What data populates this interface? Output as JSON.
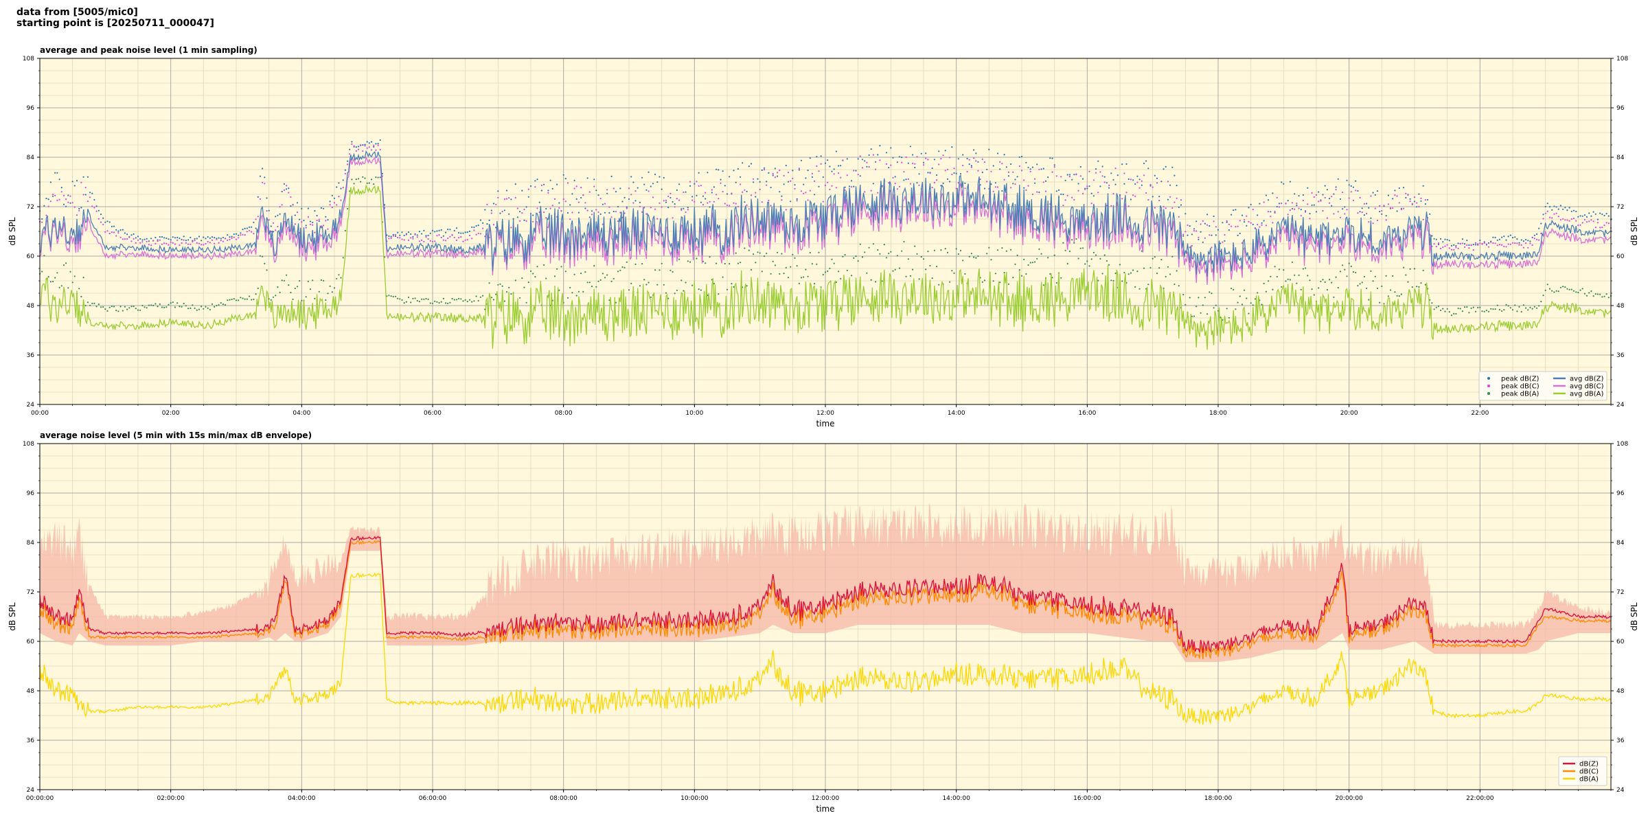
{
  "header": {
    "line1": "data from [5005/mic0]",
    "line2": "starting point is [20250711_000047]"
  },
  "colors": {
    "background": "#fff8dc",
    "grid_major": "#a9a9a9",
    "grid_minor": "#e0d8b8",
    "peak_z": "#1f77b4",
    "peak_c": "#e040e0",
    "peak_a": "#2e8b57",
    "avg_z": "#4a7fb5",
    "avg_c": "#da6fd6",
    "avg_a": "#9acd32",
    "dbz": "#dc143c",
    "dbc": "#ff8c00",
    "dba": "#ffd700",
    "envelope": "#f5b8a8"
  },
  "chart_data": [
    {
      "type": "line",
      "title": "average and peak noise level (1 min sampling)",
      "xlabel": "time",
      "ylabel": "dB SPL",
      "xlim": [
        0,
        24
      ],
      "ylim": [
        24,
        108
      ],
      "yticks": [
        24,
        36,
        48,
        60,
        72,
        84,
        96,
        108
      ],
      "xtick_labels": [
        "00:00",
        "02:00",
        "04:00",
        "06:00",
        "08:00",
        "10:00",
        "12:00",
        "14:00",
        "16:00",
        "18:00",
        "20:00",
        "22:00"
      ],
      "grid": true,
      "legend_position": "lower-right",
      "legend": [
        {
          "label": "peak dB(Z)",
          "kind": "dot",
          "color_key": "peak_z"
        },
        {
          "label": "peak dB(C)",
          "kind": "dot",
          "color_key": "peak_c"
        },
        {
          "label": "peak dB(A)",
          "kind": "dot",
          "color_key": "peak_a"
        },
        {
          "label": "avg dB(Z)",
          "kind": "line",
          "color_key": "avg_z"
        },
        {
          "label": "avg dB(C)",
          "kind": "line",
          "color_key": "avg_c"
        },
        {
          "label": "avg dB(A)",
          "kind": "line",
          "color_key": "avg_a"
        }
      ],
      "series_x_hours": [
        0,
        0.25,
        0.5,
        0.75,
        1,
        1.5,
        2,
        2.5,
        3,
        3.3,
        3.4,
        3.5,
        3.6,
        3.75,
        4,
        4.4,
        4.6,
        4.75,
        5,
        5.2,
        5.3,
        5.5,
        6,
        6.5,
        7,
        7.5,
        8,
        8.5,
        9,
        9.5,
        10,
        10.5,
        11,
        11.5,
        12,
        12.5,
        13,
        13.5,
        14,
        14.5,
        15,
        15.5,
        16,
        16.5,
        17,
        17.3,
        17.5,
        18,
        18.5,
        19,
        19.5,
        20,
        20.5,
        21,
        21.2,
        21.3,
        21.5,
        22,
        22.5,
        22.7,
        22.9,
        23,
        23.5,
        24
      ],
      "series": [
        {
          "name": "avg dB(Z)",
          "values": [
            64,
            68,
            65,
            70,
            62,
            62,
            61.5,
            61.5,
            62,
            63,
            74,
            64,
            62,
            70,
            64,
            65,
            70,
            84,
            84.5,
            84.5,
            62,
            62,
            62,
            61.5,
            63,
            65,
            66,
            65.5,
            66,
            66,
            66,
            67,
            70,
            68,
            70,
            73,
            74,
            74,
            74,
            73,
            71,
            70,
            68,
            69,
            68,
            68,
            60,
            59,
            61,
            66,
            64,
            66,
            63,
            67,
            66,
            60,
            60,
            60,
            60,
            60,
            61,
            68,
            66,
            65.5
          ]
        },
        {
          "name": "avg dB(C)",
          "values": [
            63,
            67,
            63,
            68,
            60,
            60.5,
            60,
            60,
            60.5,
            61.5,
            72,
            62,
            60.5,
            68,
            62,
            63,
            68,
            83,
            83,
            83,
            60.5,
            60.5,
            60.5,
            60.5,
            62,
            63,
            64,
            63,
            64,
            64,
            64,
            65,
            68,
            66,
            68,
            71,
            72,
            72,
            72,
            71,
            69,
            68,
            66,
            67,
            66,
            66,
            58,
            57,
            59,
            64,
            62,
            64,
            61,
            65,
            64,
            58,
            58,
            58,
            58,
            58,
            59,
            66,
            64,
            64
          ]
        },
        {
          "name": "avg dB(A)",
          "values": [
            52,
            48,
            50,
            44,
            43,
            43,
            44,
            43,
            45,
            46,
            55,
            46,
            45,
            47,
            46,
            47,
            50,
            76,
            76,
            76,
            46,
            45,
            45,
            45,
            45,
            46,
            46,
            46,
            46,
            47,
            47,
            48,
            50,
            48,
            49,
            50,
            51,
            50,
            50,
            50,
            49,
            50,
            52,
            49,
            48,
            48,
            43,
            42,
            44,
            49,
            46,
            48,
            45,
            49,
            48,
            43,
            42,
            43,
            43,
            43,
            44,
            48,
            47,
            46
          ]
        },
        {
          "name": "peak dB(Z)",
          "values": [
            70,
            75,
            72,
            76,
            68,
            64,
            64,
            64,
            65,
            68,
            80,
            68,
            66,
            76,
            68,
            70,
            76,
            87,
            87,
            87,
            65,
            65,
            65,
            66,
            70,
            72,
            73,
            72,
            73,
            74,
            74,
            75,
            77,
            76,
            78,
            80,
            80,
            80,
            80,
            79,
            78,
            77,
            76,
            77,
            76,
            75,
            66,
            65,
            68,
            73,
            72,
            74,
            70,
            74,
            72,
            63,
            63,
            63,
            64,
            63,
            66,
            72,
            70,
            69
          ]
        },
        {
          "name": "peak dB(C)",
          "values": [
            68,
            73,
            70,
            74,
            66,
            63,
            63,
            63,
            64,
            66,
            78,
            66,
            64,
            74,
            66,
            68,
            74,
            86,
            86,
            86,
            64,
            64,
            64,
            64,
            68,
            70,
            71,
            70,
            71,
            72,
            72,
            73,
            75,
            74,
            76,
            78,
            78,
            78,
            78,
            77,
            76,
            75,
            74,
            75,
            74,
            73,
            64,
            63,
            66,
            71,
            70,
            72,
            68,
            72,
            70,
            62,
            62,
            62,
            63,
            62,
            64,
            70,
            68,
            67
          ]
        },
        {
          "name": "peak dB(A)",
          "values": [
            56,
            52,
            54,
            48,
            47,
            47,
            48,
            47,
            49,
            50,
            60,
            50,
            49,
            52,
            50,
            51,
            55,
            78,
            78,
            78,
            50,
            49,
            49,
            49,
            50,
            51,
            51,
            51,
            52,
            52,
            53,
            54,
            56,
            54,
            55,
            56,
            57,
            56,
            56,
            56,
            55,
            56,
            58,
            55,
            54,
            54,
            47,
            46,
            48,
            54,
            51,
            53,
            50,
            54,
            53,
            47,
            46,
            47,
            47,
            47,
            48,
            52,
            51,
            50
          ]
        }
      ]
    },
    {
      "type": "line",
      "title": "average noise level (5 min with 15s min/max dB envelope)",
      "xlabel": "time",
      "ylabel": "dB SPL",
      "xlim": [
        0,
        24
      ],
      "ylim": [
        24,
        108
      ],
      "yticks": [
        24,
        36,
        48,
        60,
        72,
        84,
        96,
        108
      ],
      "xtick_labels": [
        "00:00:00",
        "02:00:00",
        "04:00:00",
        "06:00:00",
        "08:00:00",
        "10:00:00",
        "12:00:00",
        "14:00:00",
        "16:00:00",
        "18:00:00",
        "20:00:00",
        "22:00:00"
      ],
      "grid": true,
      "legend_position": "lower-right",
      "legend": [
        {
          "label": "dB(Z)",
          "kind": "line",
          "color_key": "dbz"
        },
        {
          "label": "dB(C)",
          "kind": "line",
          "color_key": "dbc"
        },
        {
          "label": "dB(A)",
          "kind": "line",
          "color_key": "dba"
        }
      ],
      "series_x_hours": [
        0,
        0.25,
        0.5,
        0.6,
        0.75,
        1,
        1.5,
        2,
        2.5,
        3,
        3.3,
        3.5,
        3.6,
        3.75,
        3.9,
        4,
        4.4,
        4.6,
        4.75,
        5,
        5.2,
        5.3,
        5.5,
        6,
        6.5,
        7,
        7.5,
        8,
        8.5,
        9,
        9.5,
        10,
        10.5,
        11,
        11.2,
        11.5,
        12,
        12.5,
        13,
        13.5,
        14,
        14.5,
        15,
        15.5,
        16,
        16.5,
        17,
        17.3,
        17.5,
        18,
        18.5,
        19,
        19.5,
        19.9,
        20,
        20.5,
        21,
        21.2,
        21.3,
        21.5,
        22,
        22.5,
        22.7,
        22.9,
        23,
        23.5,
        24
      ],
      "series": [
        {
          "name": "dB(Z)",
          "values": [
            70,
            66,
            65,
            72,
            63,
            62,
            62,
            62,
            62,
            62.5,
            63,
            64,
            66,
            76,
            63,
            63,
            65,
            70,
            85,
            85,
            85,
            62,
            62,
            62,
            61.5,
            63,
            64,
            65,
            64,
            65,
            65,
            65,
            66,
            68,
            74,
            67,
            69,
            72,
            73,
            73,
            73,
            75,
            71,
            70,
            69,
            68,
            67,
            66,
            59,
            59,
            61,
            64,
            63,
            78,
            63,
            64,
            70,
            67,
            60,
            60,
            60,
            60,
            60,
            65,
            68,
            66,
            66
          ]
        },
        {
          "name": "dB(C)",
          "values": [
            68,
            64,
            63,
            70,
            61,
            61,
            61,
            61,
            61,
            61.5,
            62,
            63,
            64,
            75,
            62,
            62,
            64,
            69,
            84,
            84,
            84,
            61,
            61,
            61,
            60.5,
            61.5,
            62.5,
            63,
            62.5,
            63,
            63,
            63,
            64,
            66,
            72,
            65,
            67,
            70,
            71,
            71,
            71,
            73,
            69,
            68,
            67,
            66,
            65,
            64,
            57.5,
            57.5,
            59.5,
            62,
            61.5,
            76,
            61.5,
            62.5,
            68,
            65,
            59,
            59,
            59,
            59,
            59,
            64,
            66,
            65,
            65
          ]
        },
        {
          "name": "dB(A)",
          "values": [
            53,
            48,
            47,
            44,
            43,
            43,
            44,
            44,
            44,
            45,
            46,
            47,
            50,
            53,
            46,
            46,
            47,
            50,
            76,
            76,
            76,
            46,
            45,
            45,
            45,
            45,
            46,
            45,
            45,
            46,
            46,
            46,
            48,
            50,
            55,
            47,
            48,
            51,
            51,
            50,
            52,
            52,
            51,
            51,
            52,
            54,
            47,
            46,
            42,
            42,
            44,
            48,
            46,
            56,
            46,
            48,
            55,
            50,
            43,
            42,
            42,
            43,
            43,
            45,
            47,
            46,
            46
          ]
        },
        {
          "name": "envelope min",
          "values": [
            62,
            60,
            59,
            62,
            60,
            59,
            59,
            59,
            60,
            60,
            60,
            61,
            60,
            62,
            60,
            60,
            62,
            66,
            82,
            82,
            82,
            59,
            59,
            59,
            59,
            60,
            60,
            60,
            60,
            60,
            60,
            60,
            61,
            62,
            64,
            62,
            62,
            64,
            64,
            64,
            64,
            64,
            62,
            62,
            62,
            61,
            60,
            60,
            55,
            55,
            56,
            58,
            58,
            62,
            58,
            58,
            60,
            58,
            57,
            57,
            57,
            57,
            57,
            58,
            60,
            62,
            62
          ]
        },
        {
          "name": "envelope max",
          "values": [
            82,
            85,
            82,
            86,
            74,
            66,
            66,
            66,
            67,
            69,
            72,
            74,
            80,
            84,
            76,
            76,
            78,
            80,
            87,
            87,
            87,
            66,
            66,
            66,
            66,
            75,
            78,
            80,
            79,
            81,
            82,
            83,
            84,
            85,
            86,
            86,
            87,
            88,
            88,
            88,
            88,
            88,
            88,
            87,
            86,
            86,
            86,
            88,
            78,
            76,
            78,
            82,
            80,
            85,
            80,
            80,
            82,
            79,
            64,
            64,
            64,
            64,
            64,
            68,
            72,
            68,
            67
          ]
        }
      ]
    }
  ]
}
